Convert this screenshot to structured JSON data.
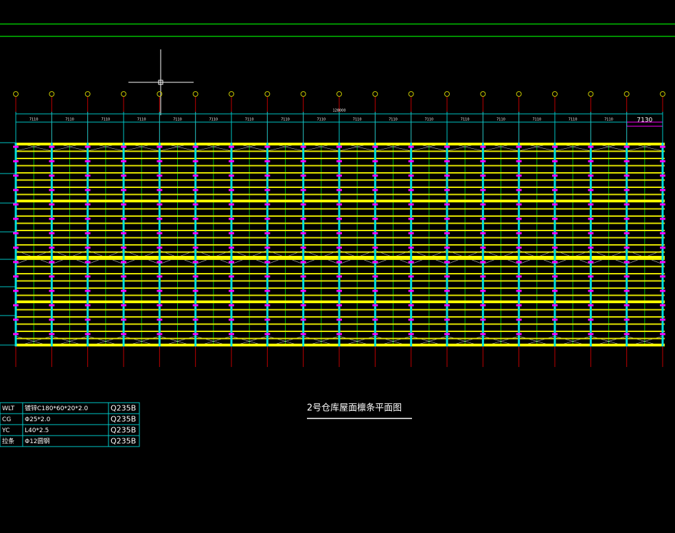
{
  "drawing": {
    "title": "2号仓库屋面檩条平面图",
    "total_dimension": "128000",
    "span_dimensions": [
      "7110",
      "7110",
      "7110",
      "7110",
      "7110",
      "7110",
      "7110",
      "7110",
      "7110",
      "7110",
      "7110",
      "7110",
      "7110",
      "7110",
      "7110",
      "7110",
      "7110",
      "7130"
    ]
  },
  "table": {
    "rows": [
      [
        "WLT",
        "镀锌C180*60*20*2.0",
        "Q235B"
      ],
      [
        "CG",
        "Φ25*2.0",
        "Q235B"
      ],
      [
        "YC",
        "L40*2.5",
        "Q235B"
      ],
      [
        "拉条",
        "Φ12圆钢",
        "Q235B"
      ]
    ]
  }
}
